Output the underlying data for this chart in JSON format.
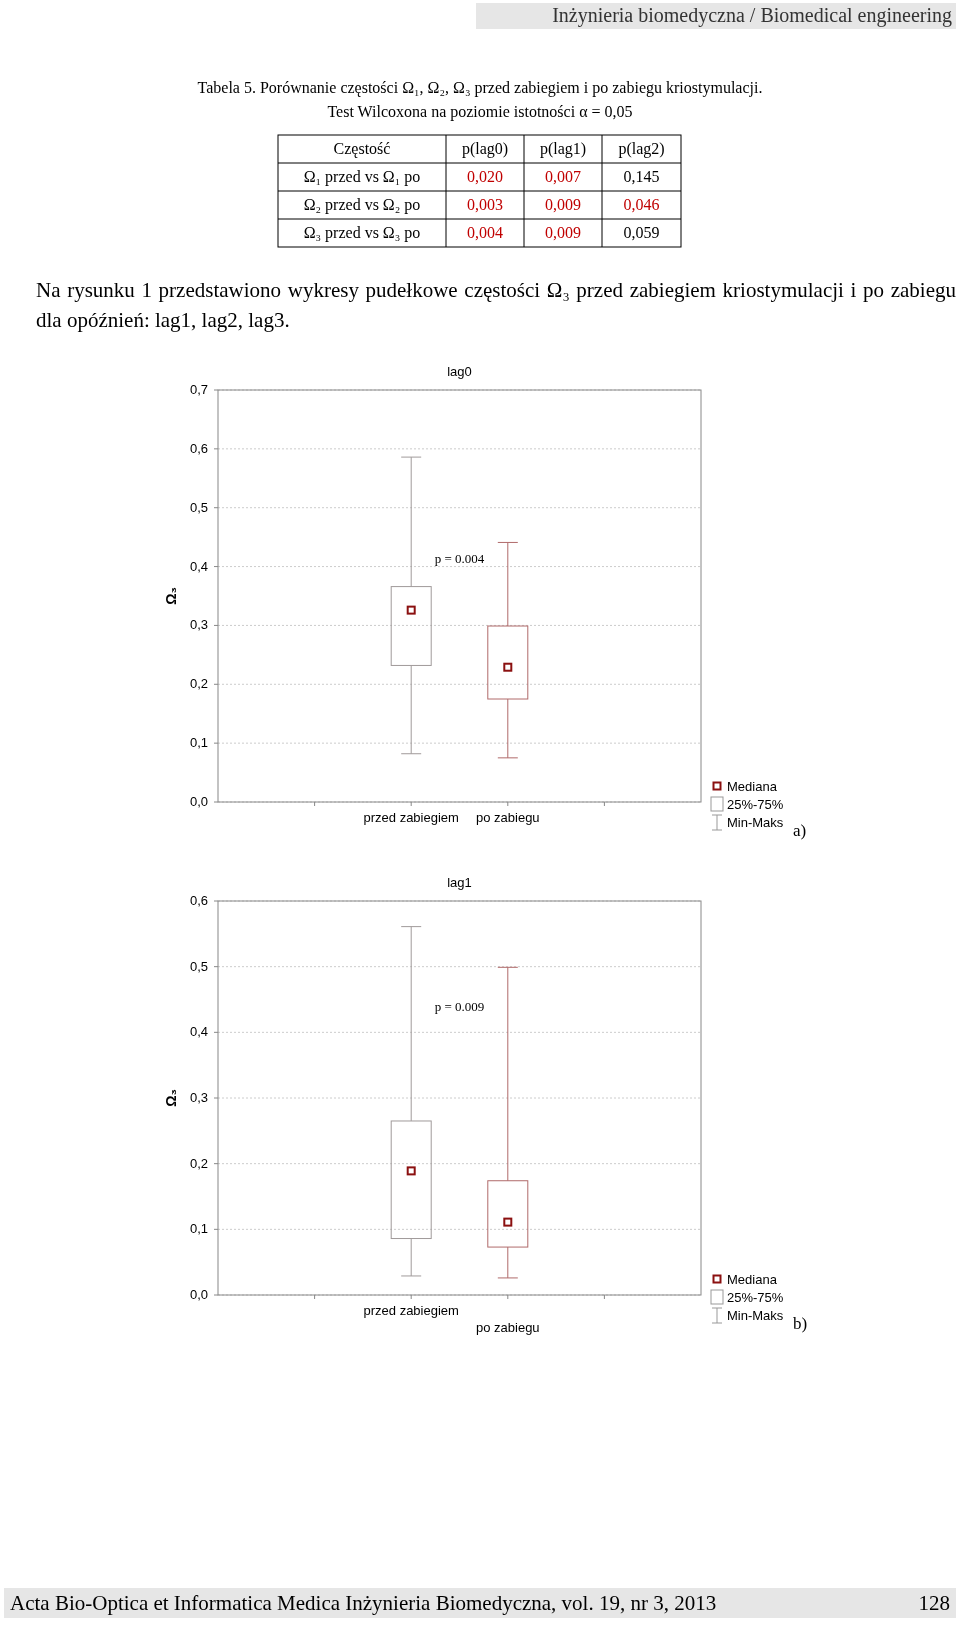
{
  "chart_data": [
    {
      "type": "other",
      "title": "Tabela 5. Porównanie częstości Ω₁, Ω₂, Ω₃ przed zabiegiem i po zabiegu kriostymulacji.",
      "subtitle": "Test Wilcoxona na poziomie istotności α = 0,05",
      "ylabel": "Częstość",
      "categories": [
        "p(lag0)",
        "p(lag1)",
        "p(lag2)"
      ],
      "y_categories": [
        "Ω₁ przed vs Ω₁ po",
        "Ω₂ przed vs Ω₂ po",
        "Ω₃ przed vs Ω₃ po"
      ],
      "cell_labels": [
        [
          "0,020",
          "0,007",
          "0,145"
        ],
        [
          "0,003",
          "0,009",
          "0,046"
        ],
        [
          "0,004",
          "0,009",
          "0,059"
        ]
      ],
      "colors": [
        [
          "#c00000",
          "#c00000",
          "#000000"
        ],
        [
          "#c00000",
          "#c00000",
          "#c00000"
        ],
        [
          "#c00000",
          "#c00000",
          "#000000"
        ]
      ],
      "annotations": [
        "Inżynieria biomedyczna / Biomedical engineering",
        "Na rysunku 1 przedstawiono wykresy pudełkowe częstości Ω₃ przed zabiegiem kriostymulacji i po zabiegu dla opóźnień: lag1, lag2, lag3.",
        "Acta Bio-Optica et Informatica Medica Inżynieria Biomedyczna, vol. 19, nr 3, 2013",
        "128"
      ]
    },
    {
      "type": "box",
      "title": "lag0",
      "ylabel": "Ω₃",
      "categories": [
        "przed zabiegiem",
        "po zabiegu"
      ],
      "boxes": [
        {
          "low": 0.082,
          "q1": 0.232,
          "median": 0.326,
          "q3": 0.366,
          "high": 0.586
        },
        {
          "low": 0.075,
          "q1": 0.175,
          "median": 0.229,
          "q3": 0.299,
          "high": 0.441
        }
      ],
      "colors": [
        "#a09a9a",
        "#b06a6a"
      ],
      "color": "#8b1010",
      "marker": "square",
      "ylim": [
        0,
        0.7
      ],
      "yticks": [
        {
          "value": 0,
          "label": "0,0"
        },
        {
          "value": 0.1,
          "label": "0,1"
        },
        {
          "value": 0.2,
          "label": "0,2"
        },
        {
          "value": 0.3,
          "label": "0,3"
        },
        {
          "value": 0.4,
          "label": "0,4"
        },
        {
          "value": 0.5,
          "label": "0,5"
        },
        {
          "value": 0.6,
          "label": "0,6"
        },
        {
          "value": 0.7,
          "label": "0,7"
        }
      ],
      "grid": "y",
      "annotations": [
        "p = 0.004",
        "Mediana",
        "25%-75%",
        "Min-Maks",
        "a)"
      ]
    },
    {
      "type": "box",
      "title": "lag1",
      "ylabel": "Ω₃",
      "categories": [
        "przed zabiegiem",
        "po zabiegu"
      ],
      "boxes": [
        {
          "low": 0.029,
          "q1": 0.086,
          "median": 0.189,
          "q3": 0.265,
          "high": 0.561
        },
        {
          "low": 0.026,
          "q1": 0.073,
          "median": 0.111,
          "q3": 0.174,
          "high": 0.499
        }
      ],
      "colors": [
        "#a09a9a",
        "#b06a6a"
      ],
      "color": "#8b1010",
      "marker": "square",
      "ylim": [
        0,
        0.6
      ],
      "yticks": [
        {
          "value": 0,
          "label": "0,0"
        },
        {
          "value": 0.1,
          "label": "0,1"
        },
        {
          "value": 0.2,
          "label": "0,2"
        },
        {
          "value": 0.3,
          "label": "0,3"
        },
        {
          "value": 0.4,
          "label": "0,4"
        },
        {
          "value": 0.5,
          "label": "0,5"
        },
        {
          "value": 0.6,
          "label": "0,6"
        }
      ],
      "grid": "y",
      "annotations": [
        "p = 0.009",
        "Mediana",
        "25%-75%",
        "Min-Maks",
        "b)"
      ]
    }
  ]
}
